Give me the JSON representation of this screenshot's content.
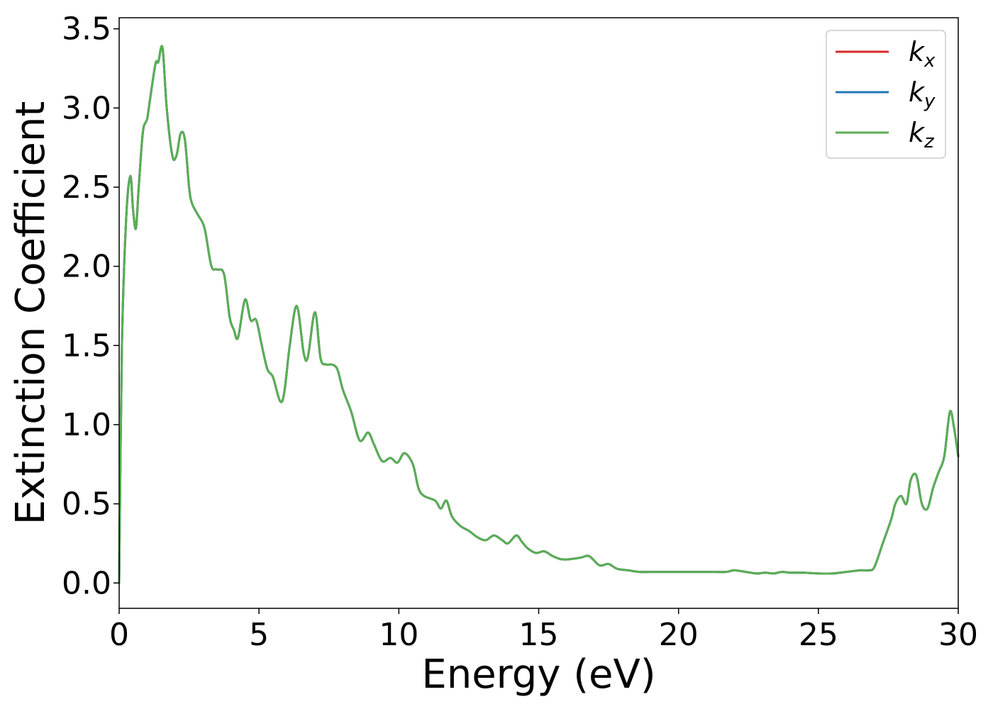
{
  "chart_data": {
    "type": "line",
    "title": "",
    "xlabel": "Energy (eV)",
    "ylabel": "Extinction Coefficient",
    "xlim": [
      0,
      30
    ],
    "ylim": [
      -0.16,
      3.57
    ],
    "xticks": [
      0,
      5,
      10,
      15,
      20,
      25,
      30
    ],
    "xtick_labels": [
      "0",
      "5",
      "10",
      "15",
      "20",
      "25",
      "30"
    ],
    "yticks": [
      0.0,
      0.5,
      1.0,
      1.5,
      2.0,
      2.5,
      3.0,
      3.5
    ],
    "ytick_labels": [
      "0.0",
      "0.5",
      "1.0",
      "1.5",
      "2.0",
      "2.5",
      "3.0",
      "3.5"
    ],
    "grid": false,
    "legend_position": "top-right",
    "x": [
      0,
      0.1,
      0.25,
      0.4,
      0.5,
      0.6,
      0.7,
      0.85,
      1.0,
      1.1,
      1.3,
      1.4,
      1.55,
      1.7,
      1.9,
      2.05,
      2.2,
      2.35,
      2.5,
      2.6,
      2.8,
      3.0,
      3.1,
      3.3,
      3.5,
      3.75,
      3.95,
      4.1,
      4.25,
      4.5,
      4.7,
      4.9,
      5.1,
      5.3,
      5.5,
      5.75,
      5.9,
      6.1,
      6.35,
      6.6,
      6.75,
      7.0,
      7.2,
      7.4,
      7.6,
      7.8,
      8.0,
      8.3,
      8.6,
      8.9,
      9.1,
      9.4,
      9.7,
      9.95,
      10.2,
      10.5,
      10.7,
      10.9,
      11.3,
      11.5,
      11.7,
      11.9,
      12.2,
      12.5,
      12.8,
      13.1,
      13.4,
      13.7,
      13.9,
      14.2,
      14.4,
      14.6,
      14.9,
      15.2,
      15.5,
      15.8,
      16.1,
      16.5,
      16.8,
      17.1,
      17.25,
      17.5,
      17.8,
      18.2,
      18.6,
      19.0,
      19.5,
      20.0,
      20.3,
      20.8,
      21.3,
      21.7,
      22.0,
      22.4,
      22.8,
      23.1,
      23.4,
      23.7,
      24.0,
      24.5,
      25.0,
      25.5,
      26.0,
      26.5,
      26.8,
      27.0,
      27.3,
      27.6,
      27.75,
      27.95,
      28.15,
      28.3,
      28.5,
      28.7,
      28.9,
      29.1,
      29.3,
      29.5,
      29.7,
      29.85,
      30.0
    ],
    "series": [
      {
        "name": "kx",
        "color": "#d62728",
        "values": [
          0.0,
          1.5,
          2.3,
          2.57,
          2.35,
          2.24,
          2.5,
          2.85,
          2.93,
          3.05,
          3.28,
          3.29,
          3.38,
          3.0,
          2.7,
          2.7,
          2.84,
          2.8,
          2.5,
          2.4,
          2.33,
          2.27,
          2.2,
          2.0,
          1.98,
          1.95,
          1.68,
          1.6,
          1.55,
          1.79,
          1.66,
          1.66,
          1.5,
          1.35,
          1.3,
          1.15,
          1.2,
          1.5,
          1.75,
          1.45,
          1.43,
          1.71,
          1.42,
          1.38,
          1.38,
          1.35,
          1.22,
          1.08,
          0.9,
          0.95,
          0.88,
          0.77,
          0.79,
          0.76,
          0.82,
          0.75,
          0.6,
          0.55,
          0.52,
          0.47,
          0.52,
          0.42,
          0.36,
          0.33,
          0.29,
          0.27,
          0.3,
          0.27,
          0.25,
          0.3,
          0.26,
          0.22,
          0.19,
          0.2,
          0.17,
          0.15,
          0.15,
          0.16,
          0.17,
          0.12,
          0.11,
          0.12,
          0.09,
          0.08,
          0.07,
          0.07,
          0.07,
          0.07,
          0.07,
          0.07,
          0.07,
          0.07,
          0.08,
          0.07,
          0.06,
          0.065,
          0.06,
          0.07,
          0.065,
          0.065,
          0.06,
          0.06,
          0.07,
          0.08,
          0.08,
          0.1,
          0.25,
          0.4,
          0.5,
          0.55,
          0.5,
          0.65,
          0.68,
          0.5,
          0.47,
          0.6,
          0.7,
          0.8,
          1.08,
          0.98,
          0.8
        ]
      },
      {
        "name": "ky",
        "color": "#1f77b4",
        "values": [
          0.0,
          1.5,
          2.3,
          2.57,
          2.35,
          2.24,
          2.5,
          2.85,
          2.93,
          3.05,
          3.28,
          3.29,
          3.38,
          3.0,
          2.7,
          2.7,
          2.84,
          2.8,
          2.5,
          2.4,
          2.33,
          2.27,
          2.2,
          2.0,
          1.98,
          1.95,
          1.68,
          1.6,
          1.55,
          1.79,
          1.66,
          1.66,
          1.5,
          1.35,
          1.3,
          1.15,
          1.2,
          1.5,
          1.75,
          1.45,
          1.43,
          1.71,
          1.42,
          1.38,
          1.38,
          1.35,
          1.22,
          1.08,
          0.9,
          0.95,
          0.88,
          0.77,
          0.79,
          0.76,
          0.82,
          0.75,
          0.6,
          0.55,
          0.52,
          0.47,
          0.52,
          0.42,
          0.36,
          0.33,
          0.29,
          0.27,
          0.3,
          0.27,
          0.25,
          0.3,
          0.26,
          0.22,
          0.19,
          0.2,
          0.17,
          0.15,
          0.15,
          0.16,
          0.17,
          0.12,
          0.11,
          0.12,
          0.09,
          0.08,
          0.07,
          0.07,
          0.07,
          0.07,
          0.07,
          0.07,
          0.07,
          0.07,
          0.08,
          0.07,
          0.06,
          0.065,
          0.06,
          0.07,
          0.065,
          0.065,
          0.06,
          0.06,
          0.07,
          0.08,
          0.08,
          0.1,
          0.25,
          0.4,
          0.5,
          0.55,
          0.5,
          0.65,
          0.68,
          0.5,
          0.47,
          0.6,
          0.7,
          0.8,
          1.08,
          0.98,
          0.8
        ]
      },
      {
        "name": "kz",
        "color": "#5aae55",
        "values": [
          0.0,
          1.5,
          2.3,
          2.57,
          2.35,
          2.24,
          2.5,
          2.85,
          2.93,
          3.05,
          3.28,
          3.29,
          3.38,
          3.0,
          2.7,
          2.7,
          2.84,
          2.8,
          2.5,
          2.4,
          2.33,
          2.27,
          2.2,
          2.0,
          1.98,
          1.95,
          1.68,
          1.6,
          1.55,
          1.79,
          1.66,
          1.66,
          1.5,
          1.35,
          1.3,
          1.15,
          1.2,
          1.5,
          1.75,
          1.45,
          1.43,
          1.71,
          1.42,
          1.38,
          1.38,
          1.35,
          1.22,
          1.08,
          0.9,
          0.95,
          0.88,
          0.77,
          0.79,
          0.76,
          0.82,
          0.75,
          0.6,
          0.55,
          0.52,
          0.47,
          0.52,
          0.42,
          0.36,
          0.33,
          0.29,
          0.27,
          0.3,
          0.27,
          0.25,
          0.3,
          0.26,
          0.22,
          0.19,
          0.2,
          0.17,
          0.15,
          0.15,
          0.16,
          0.17,
          0.12,
          0.11,
          0.12,
          0.09,
          0.08,
          0.07,
          0.07,
          0.07,
          0.07,
          0.07,
          0.07,
          0.07,
          0.07,
          0.08,
          0.07,
          0.06,
          0.065,
          0.06,
          0.07,
          0.065,
          0.065,
          0.06,
          0.06,
          0.07,
          0.08,
          0.08,
          0.1,
          0.25,
          0.4,
          0.5,
          0.55,
          0.5,
          0.65,
          0.68,
          0.5,
          0.47,
          0.6,
          0.7,
          0.8,
          1.08,
          0.98,
          0.8
        ]
      }
    ],
    "legend": [
      {
        "base": "k",
        "sub": "x",
        "color": "#d62728"
      },
      {
        "base": "k",
        "sub": "y",
        "color": "#1f77b4"
      },
      {
        "base": "k",
        "sub": "z",
        "color": "#5aae55"
      }
    ]
  }
}
